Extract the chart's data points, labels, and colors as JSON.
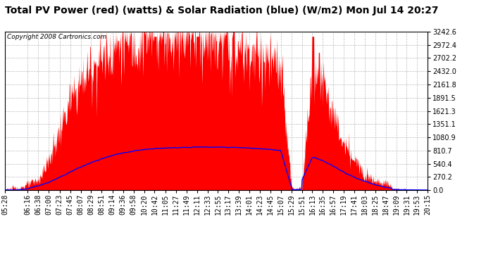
{
  "title": "Total PV Power (red) (watts) & Solar Radiation (blue) (W/m2) Mon Jul 14 20:27",
  "copyright_text": "Copyright 2008 Cartronics.com",
  "background_color": "#ffffff",
  "plot_bg_color": "#ffffff",
  "y_ticks": [
    0.0,
    270.2,
    540.4,
    810.7,
    1080.9,
    1351.1,
    1621.3,
    1891.5,
    2161.8,
    2432.0,
    2702.2,
    2972.4,
    3242.6
  ],
  "y_max": 3242.6,
  "y_min": 0.0,
  "x_tick_labels": [
    "05:28",
    "06:16",
    "06:38",
    "07:00",
    "07:23",
    "07:45",
    "08:07",
    "08:29",
    "08:51",
    "09:14",
    "09:36",
    "09:58",
    "10:20",
    "10:42",
    "11:05",
    "11:27",
    "11:49",
    "12:11",
    "12:33",
    "12:55",
    "13:17",
    "13:39",
    "14:01",
    "14:23",
    "14:45",
    "15:07",
    "15:29",
    "15:51",
    "16:13",
    "16:35",
    "16:57",
    "17:19",
    "17:41",
    "18:03",
    "18:25",
    "18:47",
    "19:09",
    "19:31",
    "19:53",
    "20:15"
  ],
  "fill_color": "#ff0000",
  "line_color": "#0000ff",
  "grid_color": "#bbbbbb",
  "title_fontsize": 10,
  "axis_fontsize": 7,
  "copyright_fontsize": 6.5,
  "num_points": 900
}
